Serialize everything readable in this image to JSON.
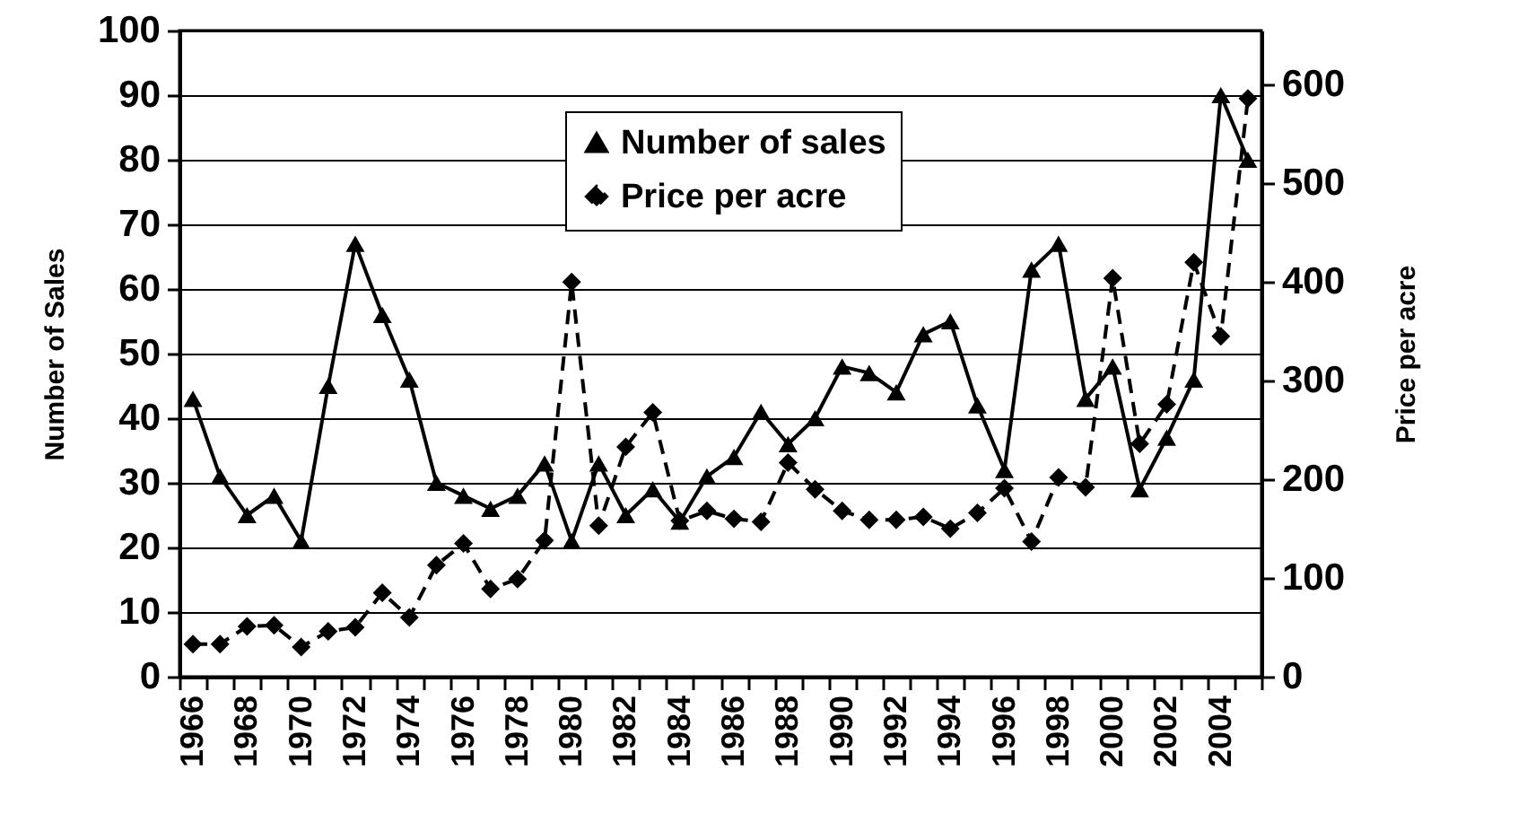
{
  "chart_data": {
    "type": "line",
    "categories": [
      "1966",
      null,
      "1968",
      null,
      "1970",
      null,
      "1972",
      null,
      "1974",
      null,
      "1976",
      null,
      "1978",
      null,
      "1980",
      null,
      "1982",
      null,
      "1984",
      null,
      "1986",
      null,
      "1988",
      null,
      "1990",
      null,
      "1992",
      null,
      "1994",
      null,
      "1996",
      null,
      "1998",
      null,
      "2000",
      null,
      "2002",
      null,
      "2004",
      null
    ],
    "ylabel": "Number of Sales",
    "y2label": "Price per acre",
    "ylim": [
      0,
      100
    ],
    "yticks": [
      0,
      10,
      20,
      30,
      40,
      50,
      60,
      70,
      80,
      90,
      100
    ],
    "y2lim": [
      0,
      655
    ],
    "y2ticks": [
      0,
      100,
      200,
      300,
      400,
      500,
      600
    ],
    "grid": "y",
    "legend": "top",
    "series": [
      {
        "name": "Number of sales",
        "color": "#000000",
        "marker": "triangle",
        "line_style": "solid",
        "values": [
          43,
          31,
          25,
          28,
          21,
          45,
          67,
          56,
          46,
          30,
          28,
          26,
          28,
          33,
          21,
          33,
          25,
          29,
          24,
          31,
          34,
          41,
          36,
          40,
          48,
          47,
          44,
          53,
          55,
          42,
          32,
          63,
          67,
          43,
          48,
          29,
          37,
          46,
          90,
          80
        ]
      },
      {
        "name": "Price per acre",
        "color": "#000000",
        "marker": "diamond",
        "line_style": "dashed",
        "axis": "y2",
        "values": [
          33,
          33,
          51,
          52,
          30,
          46,
          50,
          85,
          60,
          113,
          135,
          89,
          99,
          138,
          400,
          153,
          233,
          268,
          158,
          168,
          160,
          157,
          217,
          190,
          168,
          159,
          159,
          162,
          150,
          166,
          191,
          137,
          202,
          192,
          404,
          236,
          276,
          420,
          345,
          586
        ]
      }
    ]
  }
}
